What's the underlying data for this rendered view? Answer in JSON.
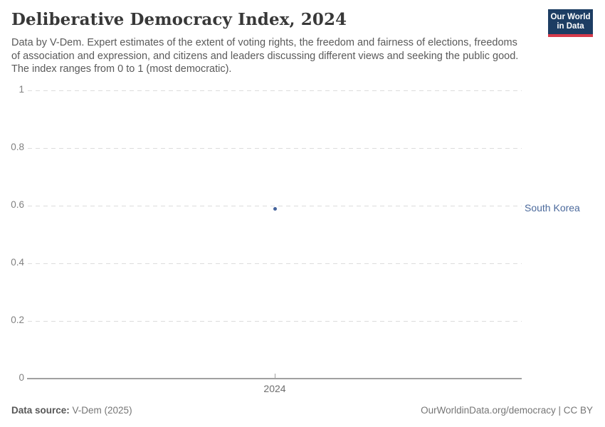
{
  "header": {
    "title": "Deliberative Democracy Index, 2024",
    "subtitle_lines": [
      "Data by V-Dem. Expert estimates of the extent of voting rights, the freedom and fairness of elections, freedoms",
      "of association and expression, and citizens and leaders discussing different views and seeking the public good.",
      "The index ranges from 0 to 1 (most democratic)."
    ],
    "logo": {
      "line1": "Our World",
      "line2": "in Data"
    }
  },
  "chart_data": {
    "type": "scatter",
    "title": "Deliberative Democracy Index, 2024",
    "x": [
      2024
    ],
    "xtick_labels": [
      "2024"
    ],
    "series": [
      {
        "name": "South Korea",
        "values": [
          0.59
        ],
        "color": "#44639c"
      }
    ],
    "ylim": [
      0,
      1
    ],
    "yticks": [
      0,
      0.2,
      0.4,
      0.6,
      0.8,
      1
    ],
    "xlabel": "",
    "ylabel": "",
    "grid": "dashed-horizontal",
    "legend_position": "right-of-point"
  },
  "footer": {
    "source_label": "Data source:",
    "source_value": " V-Dem (2025)",
    "credit": "OurWorldinData.org/democracy | CC BY"
  },
  "colors": {
    "entity_label": "#4c6a9c",
    "point": "#44639c",
    "logo_bg": "#1d3d63",
    "logo_red": "#d73b4b",
    "grid": "#dcdcdc",
    "axis": "#a0a0a0",
    "title_text": "#383838",
    "subtitle_text": "#5a5a5a"
  }
}
